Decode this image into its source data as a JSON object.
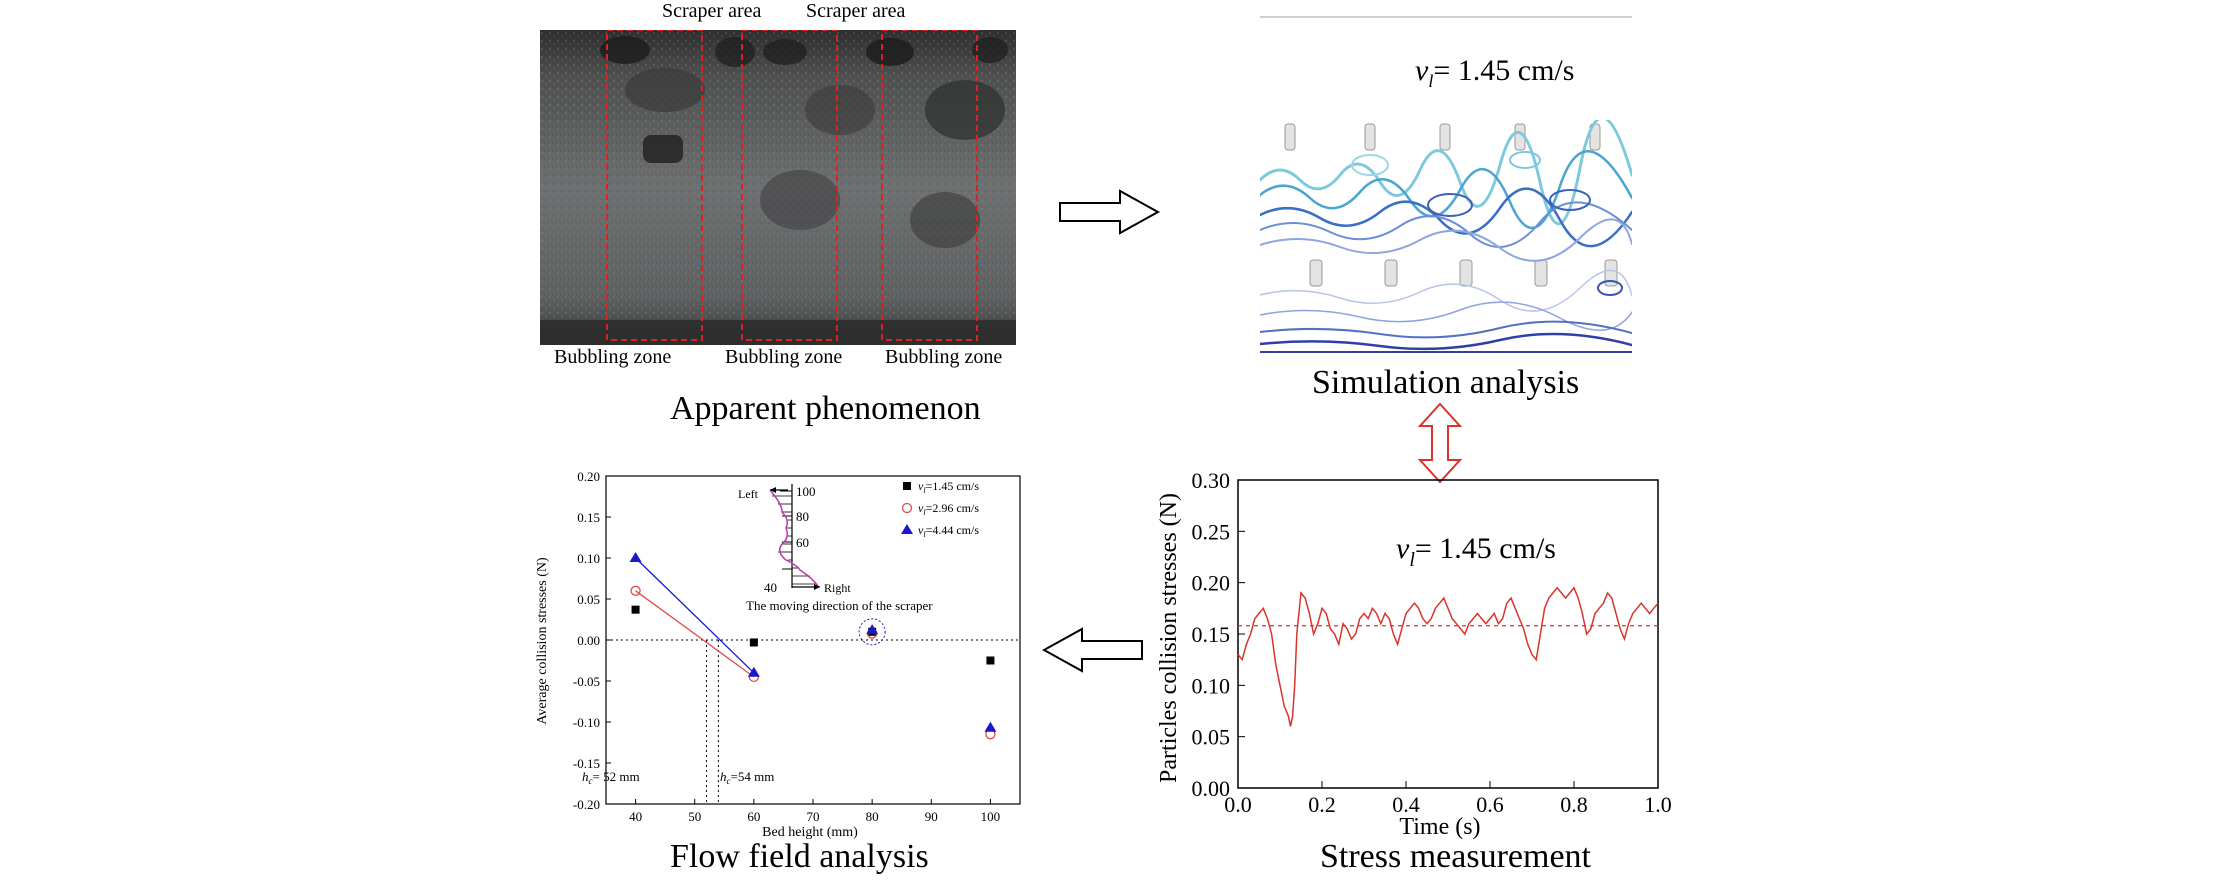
{
  "phenomenon": {
    "caption": "Apparent phenomenon",
    "top_labels": [
      "Scraper area",
      "Scraper area"
    ],
    "bottom_labels": [
      "Bubbling zone",
      "Bubbling zone",
      "Bubbling zone"
    ]
  },
  "simulation": {
    "caption": "Simulation analysis",
    "velocity_symbol": "v",
    "velocity_sub": "l",
    "velocity_value": "= 1.45 cm/s"
  },
  "stress": {
    "caption": "Stress measurement",
    "velocity_symbol": "v",
    "velocity_sub": "l",
    "velocity_value": "= 1.45 cm/s"
  },
  "flow": {
    "caption": "Flow field analysis",
    "inset_labels": {
      "left": "Left",
      "right": "Right",
      "moving": "The moving direction of the scraper",
      "ticks": [
        "100",
        "80",
        "60",
        "40"
      ]
    },
    "annotations": [
      {
        "symbol": "h",
        "sub": "c",
        "text": "= 52 mm"
      },
      {
        "symbol": "h",
        "sub": "c",
        "text": "=54 mm"
      }
    ]
  },
  "arrows": {
    "colors": {
      "black": "#000000",
      "red": "#d9342b"
    }
  },
  "chart_data": [
    {
      "type": "line",
      "title": "",
      "xlabel": "Time (s)",
      "ylabel": "Particles collision stresses (N)",
      "xlim": [
        0,
        1.0
      ],
      "ylim": [
        0,
        0.3
      ],
      "x_ticks": [
        "0.0",
        "0.2",
        "0.4",
        "0.6",
        "0.8",
        "1.0"
      ],
      "y_ticks": [
        "0.00",
        "0.05",
        "0.10",
        "0.15",
        "0.20",
        "0.25",
        "0.30"
      ],
      "reference_line": 0.158,
      "grid": false,
      "series": [
        {
          "color": "#d9342b",
          "x": [
            0.0,
            0.01,
            0.02,
            0.03,
            0.04,
            0.05,
            0.06,
            0.07,
            0.08,
            0.09,
            0.1,
            0.11,
            0.12,
            0.125,
            0.13,
            0.135,
            0.14,
            0.15,
            0.16,
            0.17,
            0.18,
            0.19,
            0.2,
            0.21,
            0.22,
            0.23,
            0.24,
            0.25,
            0.26,
            0.27,
            0.28,
            0.29,
            0.3,
            0.31,
            0.32,
            0.33,
            0.34,
            0.35,
            0.36,
            0.37,
            0.38,
            0.39,
            0.4,
            0.41,
            0.42,
            0.43,
            0.44,
            0.45,
            0.46,
            0.47,
            0.48,
            0.49,
            0.5,
            0.51,
            0.52,
            0.53,
            0.54,
            0.55,
            0.56,
            0.57,
            0.58,
            0.59,
            0.6,
            0.61,
            0.62,
            0.63,
            0.64,
            0.65,
            0.66,
            0.67,
            0.68,
            0.69,
            0.7,
            0.71,
            0.72,
            0.73,
            0.74,
            0.75,
            0.76,
            0.77,
            0.78,
            0.79,
            0.8,
            0.81,
            0.82,
            0.83,
            0.84,
            0.85,
            0.86,
            0.87,
            0.88,
            0.89,
            0.9,
            0.91,
            0.92,
            0.93,
            0.94,
            0.95,
            0.96,
            0.97,
            0.98,
            0.99,
            1.0
          ],
          "y": [
            0.13,
            0.125,
            0.14,
            0.15,
            0.165,
            0.17,
            0.175,
            0.165,
            0.15,
            0.12,
            0.1,
            0.08,
            0.07,
            0.06,
            0.07,
            0.1,
            0.15,
            0.19,
            0.185,
            0.17,
            0.15,
            0.16,
            0.175,
            0.17,
            0.155,
            0.15,
            0.14,
            0.16,
            0.155,
            0.145,
            0.15,
            0.165,
            0.17,
            0.165,
            0.175,
            0.17,
            0.16,
            0.17,
            0.165,
            0.15,
            0.14,
            0.155,
            0.17,
            0.175,
            0.18,
            0.175,
            0.165,
            0.16,
            0.165,
            0.175,
            0.18,
            0.185,
            0.175,
            0.165,
            0.16,
            0.155,
            0.15,
            0.16,
            0.165,
            0.17,
            0.165,
            0.16,
            0.165,
            0.17,
            0.16,
            0.165,
            0.18,
            0.185,
            0.175,
            0.165,
            0.155,
            0.14,
            0.13,
            0.125,
            0.15,
            0.175,
            0.185,
            0.19,
            0.195,
            0.19,
            0.185,
            0.19,
            0.195,
            0.185,
            0.17,
            0.15,
            0.155,
            0.17,
            0.175,
            0.18,
            0.19,
            0.185,
            0.17,
            0.155,
            0.145,
            0.16,
            0.17,
            0.175,
            0.18,
            0.175,
            0.17,
            0.175,
            0.18
          ]
        }
      ]
    },
    {
      "type": "scatter",
      "title": "",
      "xlabel": "Bed height (mm)",
      "ylabel": "Average collision stresses (N)",
      "xlim": [
        35,
        105
      ],
      "ylim": [
        -0.2,
        0.2
      ],
      "x_ticks": [
        "40",
        "50",
        "60",
        "70",
        "80",
        "90",
        "100"
      ],
      "y_ticks": [
        "0.20",
        "0.15",
        "0.10",
        "0.05",
        "0.00",
        "-0.05",
        "-0.10",
        "-0.15",
        "-0.20"
      ],
      "legend_placement": "top-right",
      "series": [
        {
          "legend_symbol": "v",
          "legend_sub": "l",
          "legend_value": "=1.45 cm/s",
          "marker": "square",
          "color": "#000000",
          "x": [
            40,
            60,
            80,
            100
          ],
          "y": [
            0.037,
            -0.003,
            0.01,
            -0.025
          ]
        },
        {
          "legend_symbol": "v",
          "legend_sub": "l",
          "legend_value": "=2.96 cm/s",
          "marker": "circle-open",
          "color": "#e24a4a",
          "x": [
            40,
            60,
            80,
            100
          ],
          "y": [
            0.06,
            -0.045,
            0.008,
            -0.115
          ]
        },
        {
          "legend_symbol": "v",
          "legend_sub": "l",
          "legend_value": "=4.44 cm/s",
          "marker": "triangle",
          "color": "#1a1acc",
          "x": [
            40,
            60,
            80,
            100
          ],
          "y": [
            0.1,
            -0.04,
            0.012,
            -0.107
          ]
        }
      ],
      "fit_lines": [
        {
          "color": "#e24a4a",
          "from": [
            40,
            0.06
          ],
          "to": [
            60,
            -0.045
          ]
        },
        {
          "color": "#1a1acc",
          "from": [
            40,
            0.1
          ],
          "to": [
            60,
            -0.04
          ]
        }
      ],
      "zero_crossings": [
        52,
        54
      ]
    }
  ]
}
